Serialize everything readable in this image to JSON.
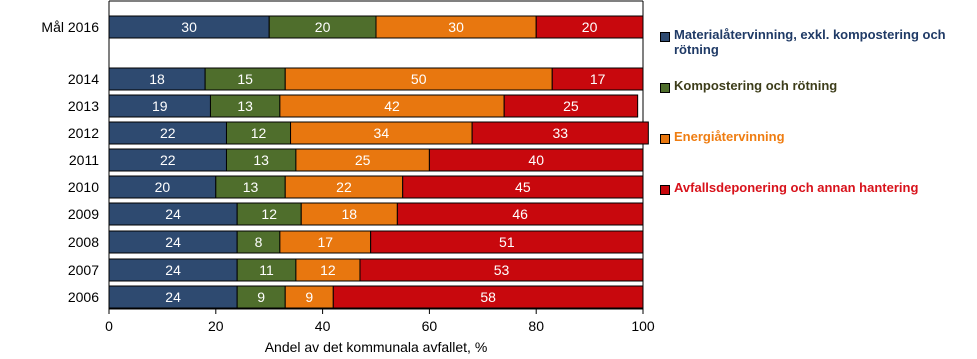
{
  "chart_data": {
    "type": "bar",
    "orientation": "horizontal",
    "stacked": true,
    "categories": [
      "Mål 2016",
      "2014",
      "2013",
      "2012",
      "2011",
      "2010",
      "2009",
      "2008",
      "2007",
      "2006"
    ],
    "series": [
      {
        "name": "Materialåtervinning, exkl. kompostering och rötning",
        "color": "#2e4a70",
        "values": [
          30,
          18,
          19,
          22,
          22,
          20,
          24,
          24,
          24,
          24
        ]
      },
      {
        "name": "Kompostering och rötning",
        "color": "#4f6e2c",
        "values": [
          20,
          15,
          13,
          12,
          13,
          13,
          12,
          8,
          11,
          9
        ]
      },
      {
        "name": "Energiåtervinning",
        "color": "#e8770f",
        "values": [
          30,
          50,
          42,
          34,
          25,
          22,
          18,
          17,
          12,
          9
        ]
      },
      {
        "name": "Avfallsdeponering och annan hantering",
        "color": "#c8080d",
        "values": [
          20,
          17,
          25,
          33,
          40,
          45,
          46,
          51,
          53,
          58
        ]
      }
    ],
    "legend_text_colors": [
      "#1f3a66",
      "#3d3d1a",
      "#ef7d11",
      "#d8121b"
    ],
    "xlabel": "Andel av det kommunala avfallet, %",
    "ylabel": "",
    "xlim": [
      0,
      100
    ],
    "xticks": [
      "0",
      "20",
      "40",
      "60",
      "80",
      "100"
    ],
    "grid": false,
    "legend_position": "right"
  }
}
